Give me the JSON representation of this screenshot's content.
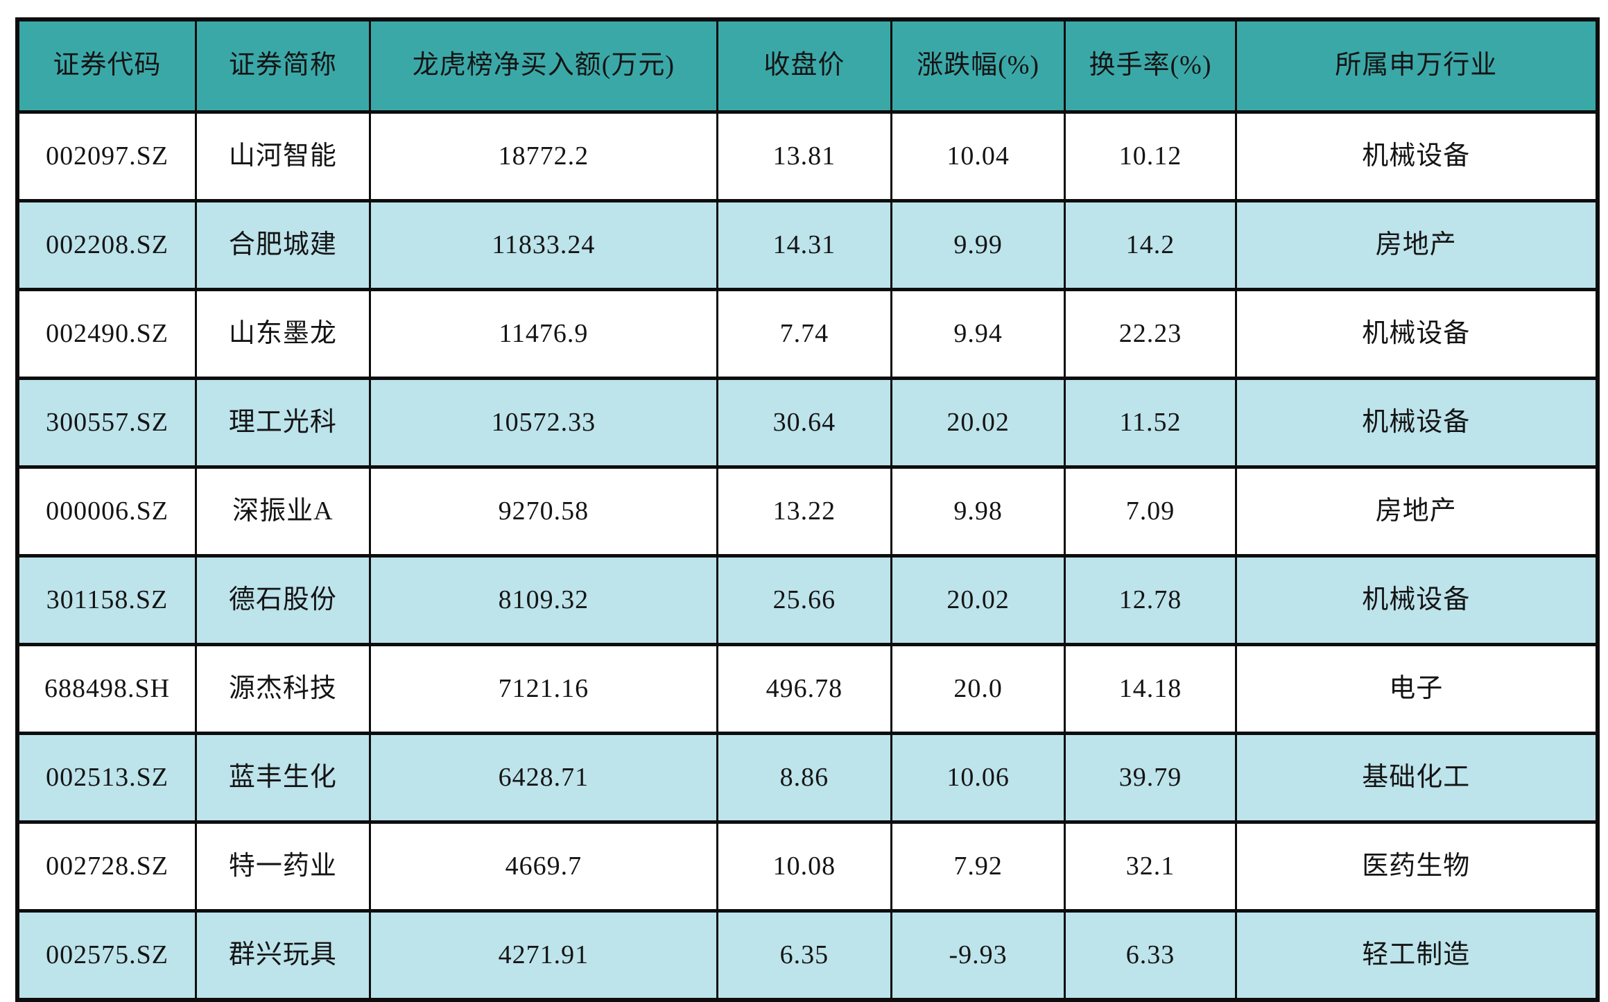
{
  "colors": {
    "header_bg": "#3BA8A8",
    "row_bg": "#FFFFFF",
    "row_alt_bg": "#BDE3EB",
    "border": "#0D0D0D",
    "text": "#141414"
  },
  "chart_data": {
    "type": "table",
    "title": "",
    "columns": [
      "证券代码",
      "证券简称",
      "龙虎榜净买入额(万元)",
      "收盘价",
      "涨跌幅(%)",
      "换手率(%)",
      "所属申万行业"
    ],
    "column_keys": [
      "code",
      "name",
      "net_buy_wan",
      "close_price",
      "change_pct",
      "turnover_pct",
      "sw_industry"
    ],
    "column_widths_pct": [
      11.3,
      11.0,
      22.0,
      11.0,
      11.0,
      10.8,
      22.9
    ],
    "rows": [
      [
        "002097.SZ",
        "山河智能",
        "18772.2",
        "13.81",
        "10.04",
        "10.12",
        "机械设备"
      ],
      [
        "002208.SZ",
        "合肥城建",
        "11833.24",
        "14.31",
        "9.99",
        "14.2",
        "房地产"
      ],
      [
        "002490.SZ",
        "山东墨龙",
        "11476.9",
        "7.74",
        "9.94",
        "22.23",
        "机械设备"
      ],
      [
        "300557.SZ",
        "理工光科",
        "10572.33",
        "30.64",
        "20.02",
        "11.52",
        "机械设备"
      ],
      [
        "000006.SZ",
        "深振业A",
        "9270.58",
        "13.22",
        "9.98",
        "7.09",
        "房地产"
      ],
      [
        "301158.SZ",
        "德石股份",
        "8109.32",
        "25.66",
        "20.02",
        "12.78",
        "机械设备"
      ],
      [
        "688498.SH",
        "源杰科技",
        "7121.16",
        "496.78",
        "20.0",
        "14.18",
        "电子"
      ],
      [
        "002513.SZ",
        "蓝丰生化",
        "6428.71",
        "8.86",
        "10.06",
        "39.79",
        "基础化工"
      ],
      [
        "002728.SZ",
        "特一药业",
        "4669.7",
        "10.08",
        "7.92",
        "32.1",
        "医药生物"
      ],
      [
        "002575.SZ",
        "群兴玩具",
        "4271.91",
        "6.35",
        "-9.93",
        "6.33",
        "轻工制造"
      ]
    ],
    "layout_hints": {
      "striping": "even data rows (1-indexed: 2,4,6,8,10) use row_alt_bg; odd rows white",
      "alignment": "all cells centered",
      "grid": "thick black gridlines on all cells"
    }
  }
}
